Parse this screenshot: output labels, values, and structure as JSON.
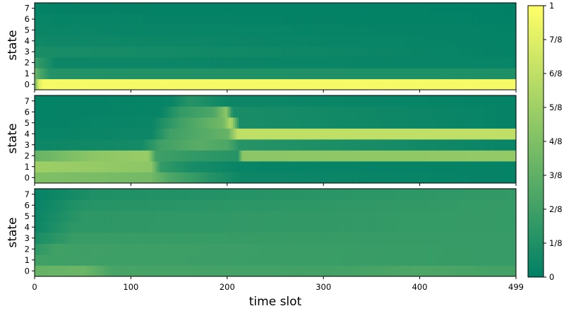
{
  "chart_data": {
    "type": "heatmap",
    "colormap": "summer",
    "colors": {
      "low": "#008066",
      "high": "#ffff66",
      "frame": "#000000"
    },
    "xlabel": "time slot",
    "x_range": [
      0,
      499
    ],
    "x_ticks": [
      0,
      100,
      200,
      300,
      400,
      499
    ],
    "y_ticks": [
      0,
      1,
      2,
      3,
      4,
      5,
      6,
      7
    ],
    "colorbar": {
      "range": [
        0,
        1
      ],
      "ticks": [
        0,
        0.125,
        0.25,
        0.375,
        0.5,
        0.625,
        0.75,
        0.875,
        1
      ],
      "tick_labels": [
        "0",
        "1/8",
        "2/8",
        "3/8",
        "4/8",
        "5/8",
        "6/8",
        "7/8",
        "1"
      ]
    },
    "panels": [
      {
        "ylabel": "state",
        "rows": [
          {
            "state": 0,
            "segments": [
              [
                0,
                0.5
              ],
              [
                3,
                0.85
              ],
              [
                8,
                0.96
              ],
              [
                499,
                0.96
              ]
            ]
          },
          {
            "state": 1,
            "segments": [
              [
                0,
                0.4
              ],
              [
                5,
                0.28
              ],
              [
                15,
                0.14
              ],
              [
                499,
                0.12
              ]
            ]
          },
          {
            "state": 2,
            "segments": [
              [
                0,
                0.22
              ],
              [
                8,
                0.15
              ],
              [
                20,
                0.05
              ],
              [
                499,
                0.03
              ]
            ]
          },
          {
            "state": 3,
            "segments": [
              [
                0,
                0.1
              ],
              [
                499,
                0.02
              ]
            ]
          },
          {
            "state": 4,
            "segments": [
              [
                0,
                0.06
              ],
              [
                499,
                0.02
              ]
            ]
          },
          {
            "state": 5,
            "segments": [
              [
                0,
                0.04
              ],
              [
                499,
                0.02
              ]
            ]
          },
          {
            "state": 6,
            "segments": [
              [
                0,
                0.03
              ],
              [
                499,
                0.01
              ]
            ]
          },
          {
            "state": 7,
            "segments": [
              [
                0,
                0.02
              ],
              [
                499,
                0.01
              ]
            ]
          }
        ]
      },
      {
        "ylabel": "state",
        "rows": [
          {
            "state": 0,
            "segments": [
              [
                0,
                0.5
              ],
              [
                120,
                0.45
              ],
              [
                140,
                0.3
              ],
              [
                180,
                0.15
              ],
              [
                215,
                0.05
              ],
              [
                499,
                0.02
              ]
            ]
          },
          {
            "state": 1,
            "segments": [
              [
                0,
                0.62
              ],
              [
                120,
                0.55
              ],
              [
                130,
                0.2
              ],
              [
                160,
                0.1
              ],
              [
                215,
                0.03
              ],
              [
                499,
                0.02
              ]
            ]
          },
          {
            "state": 2,
            "segments": [
              [
                0,
                0.4
              ],
              [
                60,
                0.55
              ],
              [
                117,
                0.6
              ],
              [
                125,
                0.25
              ],
              [
                160,
                0.2
              ],
              [
                210,
                0.15
              ],
              [
                215,
                0.55
              ],
              [
                499,
                0.58
              ]
            ]
          },
          {
            "state": 3,
            "segments": [
              [
                0,
                0.05
              ],
              [
                110,
                0.08
              ],
              [
                130,
                0.25
              ],
              [
                170,
                0.35
              ],
              [
                200,
                0.3
              ],
              [
                212,
                0.15
              ],
              [
                499,
                0.03
              ]
            ]
          },
          {
            "state": 4,
            "segments": [
              [
                0,
                0.03
              ],
              [
                120,
                0.05
              ],
              [
                140,
                0.25
              ],
              [
                180,
                0.35
              ],
              [
                200,
                0.4
              ],
              [
                210,
                0.75
              ],
              [
                499,
                0.75
              ]
            ]
          },
          {
            "state": 5,
            "segments": [
              [
                0,
                0.02
              ],
              [
                120,
                0.04
              ],
              [
                150,
                0.25
              ],
              [
                195,
                0.45
              ],
              [
                203,
                0.7
              ],
              [
                212,
                0.1
              ],
              [
                499,
                0.02
              ]
            ]
          },
          {
            "state": 6,
            "segments": [
              [
                0,
                0.02
              ],
              [
                130,
                0.03
              ],
              [
                150,
                0.2
              ],
              [
                185,
                0.3
              ],
              [
                198,
                0.55
              ],
              [
                205,
                0.1
              ],
              [
                499,
                0.02
              ]
            ]
          },
          {
            "state": 7,
            "segments": [
              [
                0,
                0.02
              ],
              [
                140,
                0.03
              ],
              [
                160,
                0.15
              ],
              [
                200,
                0.05
              ],
              [
                499,
                0.02
              ]
            ]
          }
        ]
      },
      {
        "ylabel": "state",
        "rows": [
          {
            "state": 0,
            "segments": [
              [
                0,
                0.4
              ],
              [
                50,
                0.42
              ],
              [
                80,
                0.28
              ],
              [
                300,
                0.26
              ],
              [
                400,
                0.3
              ],
              [
                499,
                0.26
              ]
            ]
          },
          {
            "state": 1,
            "segments": [
              [
                0,
                0.25
              ],
              [
                499,
                0.21
              ]
            ]
          },
          {
            "state": 2,
            "segments": [
              [
                0,
                0.18
              ],
              [
                20,
                0.25
              ],
              [
                499,
                0.21
              ]
            ]
          },
          {
            "state": 3,
            "segments": [
              [
                0,
                0.1
              ],
              [
                40,
                0.22
              ],
              [
                499,
                0.21
              ]
            ]
          },
          {
            "state": 4,
            "segments": [
              [
                0,
                0.05
              ],
              [
                40,
                0.18
              ],
              [
                499,
                0.21
              ]
            ]
          },
          {
            "state": 5,
            "segments": [
              [
                0,
                0.04
              ],
              [
                50,
                0.18
              ],
              [
                499,
                0.21
              ]
            ]
          },
          {
            "state": 6,
            "segments": [
              [
                0,
                0.03
              ],
              [
                50,
                0.15
              ],
              [
                499,
                0.21
              ]
            ]
          },
          {
            "state": 7,
            "segments": [
              [
                0,
                0.02
              ],
              [
                60,
                0.12
              ],
              [
                499,
                0.2
              ]
            ]
          }
        ]
      }
    ]
  }
}
